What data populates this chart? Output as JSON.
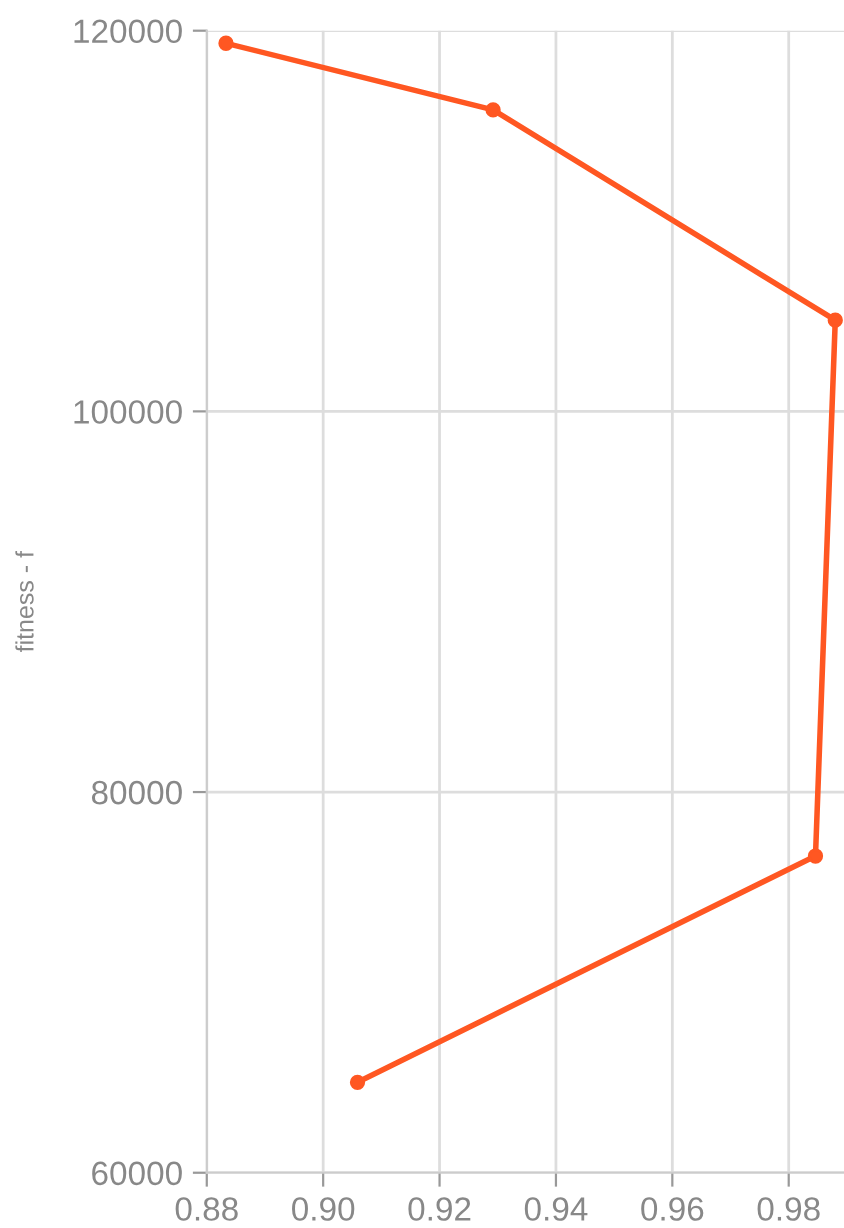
{
  "chart_data": {
    "type": "line",
    "ylabel": "fitness - f",
    "series": [
      {
        "color": "#ff5722",
        "x": [
          0.9059,
          0.9846,
          0.988,
          0.9292,
          0.8833
        ],
        "values": [
          64750,
          76640,
          104790,
          115840,
          119340
        ]
      }
    ],
    "xlim": [
      0.88,
      0.9895
    ],
    "xticks": [
      {
        "value": 0.88,
        "label": "0.88"
      },
      {
        "value": 0.9,
        "label": "0.90"
      },
      {
        "value": 0.92,
        "label": "0.92"
      },
      {
        "value": 0.94,
        "label": "0.94"
      },
      {
        "value": 0.96,
        "label": "0.96"
      },
      {
        "value": 0.98,
        "label": "0.98"
      }
    ],
    "ylim": [
      60000,
      120000
    ],
    "yticks": [
      60000,
      80000,
      100000,
      120000
    ],
    "grid": true,
    "marker": "circle",
    "line_style": "solid"
  }
}
